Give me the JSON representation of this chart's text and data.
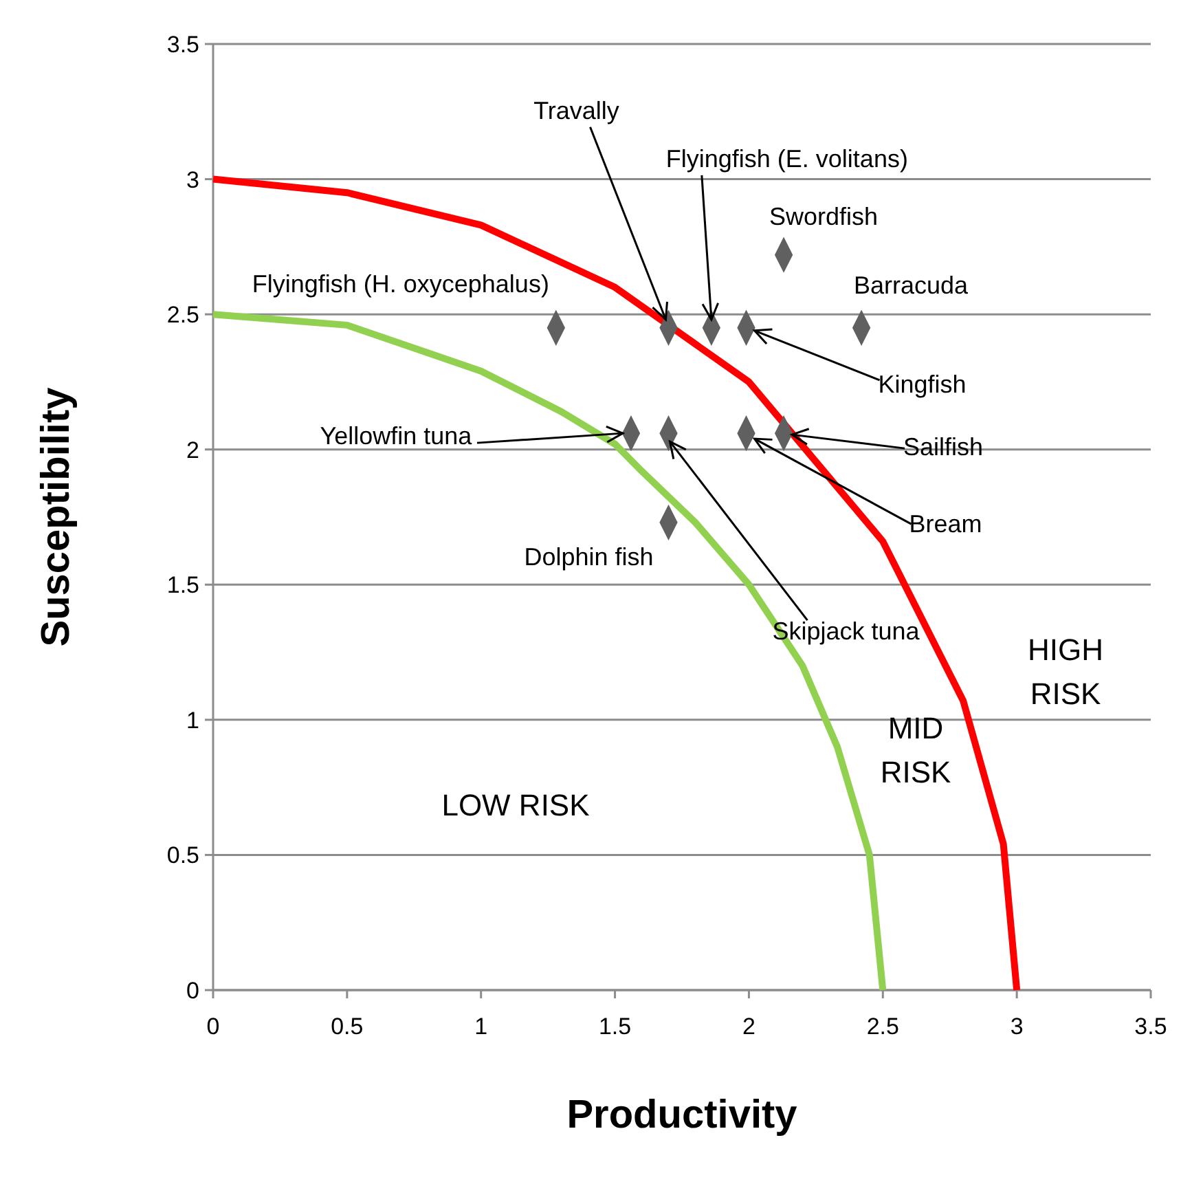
{
  "chart_data": {
    "type": "scatter",
    "xlabel": "Productivity",
    "ylabel": "Susceptibility",
    "xlim": [
      0,
      3.5
    ],
    "ylim": [
      0,
      3.5
    ],
    "xticks": [
      0,
      0.5,
      1,
      1.5,
      2,
      2.5,
      3,
      3.5
    ],
    "yticks": [
      0,
      0.5,
      1,
      1.5,
      2,
      2.5,
      3,
      3.5
    ],
    "grid": "y",
    "legend": false,
    "series": [
      {
        "type": "line",
        "color": "#ff0000",
        "x": [
          0,
          0.5,
          1,
          1.5,
          2,
          2.5,
          2.8,
          2.95,
          3
        ],
        "values": [
          3,
          2.95,
          2.83,
          2.6,
          2.25,
          1.66,
          1.07,
          0.54,
          0
        ]
      },
      {
        "type": "line",
        "color": "#92d050",
        "x": [
          0,
          0.5,
          1,
          1.3,
          1.5,
          1.6,
          1.8,
          2,
          2.2,
          2.33,
          2.45,
          2.5
        ],
        "values": [
          2.5,
          2.46,
          2.29,
          2.14,
          2.02,
          1.92,
          1.73,
          1.5,
          1.2,
          0.9,
          0.5,
          0
        ]
      },
      {
        "type": "scatter",
        "color": "#606060",
        "marker": "diamond",
        "x": [
          1.28,
          1.7,
          1.86,
          1.99,
          2.42,
          2.13,
          1.56,
          1.7,
          1.99,
          2.13,
          1.7
        ],
        "values": [
          2.45,
          2.45,
          2.45,
          2.45,
          2.45,
          2.72,
          2.06,
          2.06,
          2.06,
          2.06,
          1.73
        ]
      }
    ],
    "annotations": [
      {
        "text": "Travally",
        "x": 1.7,
        "y": 2.45
      },
      {
        "text": "Flyingfish (E. volitans)",
        "x": 1.86,
        "y": 2.45
      },
      {
        "text": "Swordfish",
        "x": 2.13,
        "y": 2.72
      },
      {
        "text": "Barracuda",
        "x": 2.42,
        "y": 2.45
      },
      {
        "text": "Kingfish",
        "x": 1.99,
        "y": 2.45
      },
      {
        "text": "Sailfish",
        "x": 2.13,
        "y": 2.06
      },
      {
        "text": "Bream",
        "x": 1.99,
        "y": 2.06
      },
      {
        "text": "Skipjack tuna",
        "x": 1.7,
        "y": 2.06
      },
      {
        "text": "Yellowfin tuna",
        "x": 1.56,
        "y": 2.06
      },
      {
        "text": "Dolphin fish",
        "x": 1.7,
        "y": 1.73
      },
      {
        "text": "Flyingfish (H. oxycephalus)",
        "x": 1.28,
        "y": 2.45
      },
      "LOW RISK",
      "MID RISK",
      "HIGH RISK"
    ]
  }
}
